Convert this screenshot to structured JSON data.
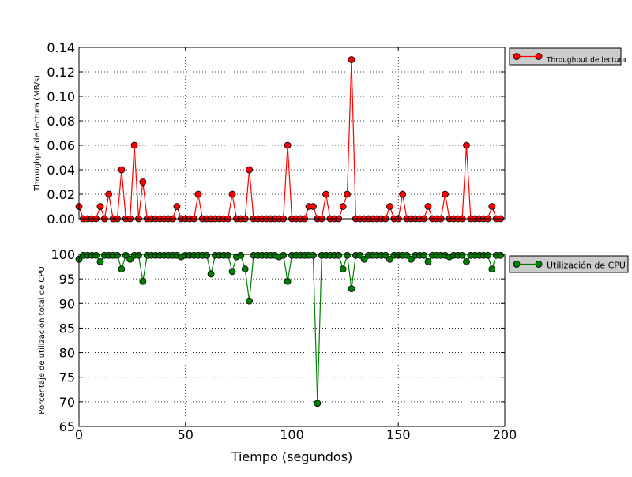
{
  "chart_data": [
    {
      "type": "line",
      "xlabel": "",
      "ylabel": "Throughput de lectura (MB/s)",
      "xlim": [
        0,
        200
      ],
      "ylim": [
        0,
        0.14
      ],
      "grid": true,
      "legend_position": "outside-right",
      "x_ticks": [
        0,
        50,
        100,
        150,
        200
      ],
      "y_ticks": [
        0.0,
        0.02,
        0.04,
        0.06,
        0.08,
        0.1,
        0.12,
        0.14
      ],
      "y_tick_labels": [
        "0.00",
        "0.02",
        "0.04",
        "0.06",
        "0.08",
        "0.10",
        "0.12",
        "0.14"
      ],
      "series": [
        {
          "name": "Throughput de lectura",
          "color": "#ff0000",
          "x": [
            0,
            2,
            4,
            6,
            8,
            10,
            12,
            14,
            16,
            18,
            20,
            22,
            24,
            26,
            28,
            30,
            32,
            34,
            36,
            38,
            40,
            42,
            44,
            46,
            48,
            50,
            52,
            54,
            56,
            58,
            60,
            62,
            64,
            66,
            68,
            70,
            72,
            74,
            76,
            78,
            80,
            82,
            84,
            86,
            88,
            90,
            92,
            94,
            96,
            98,
            100,
            102,
            104,
            106,
            108,
            110,
            112,
            114,
            116,
            118,
            120,
            122,
            124,
            126,
            128,
            130,
            132,
            134,
            136,
            138,
            140,
            142,
            144,
            146,
            148,
            150,
            152,
            154,
            156,
            158,
            160,
            162,
            164,
            166,
            168,
            170,
            172,
            174,
            176,
            178,
            180,
            182,
            184,
            186,
            188,
            190,
            192,
            194,
            196,
            198
          ],
          "y": [
            0.01,
            0,
            0,
            0,
            0,
            0.01,
            0,
            0.02,
            0,
            0,
            0.04,
            0,
            0,
            0.06,
            0,
            0.03,
            0,
            0,
            0,
            0,
            0,
            0,
            0,
            0.01,
            0,
            0,
            0,
            0,
            0.02,
            0,
            0,
            0,
            0,
            0,
            0,
            0,
            0.02,
            0,
            0,
            0,
            0.04,
            0,
            0,
            0,
            0,
            0,
            0,
            0,
            0,
            0.06,
            0,
            0,
            0,
            0,
            0.01,
            0.01,
            0,
            0,
            0.02,
            0,
            0,
            0,
            0.01,
            0.02,
            0.13,
            0,
            0,
            0,
            0,
            0,
            0,
            0,
            0,
            0.01,
            0,
            0,
            0.02,
            0,
            0,
            0,
            0,
            0,
            0.01,
            0,
            0,
            0,
            0.02,
            0,
            0,
            0,
            0,
            0.06,
            0,
            0,
            0,
            0,
            0,
            0.01,
            0,
            0
          ]
        }
      ]
    },
    {
      "type": "line",
      "xlabel": "Tiempo (segundos)",
      "ylabel": "Porcentaje de utilización total de CPU",
      "xlim": [
        0,
        200
      ],
      "ylim": [
        65,
        100
      ],
      "grid": true,
      "legend_position": "outside-right",
      "x_ticks": [
        0,
        50,
        100,
        150,
        200
      ],
      "x_tick_labels": [
        "0",
        "50",
        "100",
        "150",
        "200"
      ],
      "y_ticks": [
        65,
        70,
        75,
        80,
        85,
        90,
        95,
        100
      ],
      "y_tick_labels": [
        "65",
        "70",
        "75",
        "80",
        "85",
        "90",
        "95",
        "100"
      ],
      "series": [
        {
          "name": "Utilización de CPU",
          "color": "#008000",
          "x": [
            0,
            2,
            4,
            6,
            8,
            10,
            12,
            14,
            16,
            18,
            20,
            22,
            24,
            26,
            28,
            30,
            32,
            34,
            36,
            38,
            40,
            42,
            44,
            46,
            48,
            50,
            52,
            54,
            56,
            58,
            60,
            62,
            64,
            66,
            68,
            70,
            72,
            74,
            76,
            78,
            80,
            82,
            84,
            86,
            88,
            90,
            92,
            94,
            96,
            98,
            100,
            102,
            104,
            106,
            108,
            110,
            112,
            114,
            116,
            118,
            120,
            122,
            124,
            126,
            128,
            130,
            132,
            134,
            136,
            138,
            140,
            142,
            144,
            146,
            148,
            150,
            152,
            154,
            156,
            158,
            160,
            162,
            164,
            166,
            168,
            170,
            172,
            174,
            176,
            178,
            180,
            182,
            184,
            186,
            188,
            190,
            192,
            194,
            196,
            198
          ],
          "y": [
            99,
            99.8,
            99.8,
            99.8,
            99.8,
            98.5,
            99.8,
            99.8,
            99.8,
            99.8,
            97,
            99.8,
            99,
            99.8,
            99.8,
            94.5,
            99.8,
            99.8,
            99.8,
            99.8,
            99.8,
            99.8,
            99.8,
            99.8,
            99.5,
            99.8,
            99.8,
            99.8,
            99.8,
            99.8,
            99.8,
            96,
            99.8,
            99.8,
            99.8,
            99.8,
            96.5,
            99.5,
            99.8,
            97,
            90.5,
            99.8,
            99.8,
            99.8,
            99.8,
            99.8,
            99.8,
            99.5,
            99.8,
            94.5,
            99.8,
            99.8,
            99.8,
            99.8,
            99.8,
            99.8,
            69.7,
            99.8,
            99.8,
            99.8,
            99.8,
            99.8,
            97,
            99.8,
            93,
            99.8,
            99.8,
            99,
            99.8,
            99.8,
            99.8,
            99.8,
            99.8,
            99,
            99.8,
            99.8,
            99.8,
            99.8,
            99,
            99.8,
            99.8,
            99.8,
            98.5,
            99.8,
            99.8,
            99.8,
            99.8,
            99.5,
            99.8,
            99.8,
            99.8,
            98.5,
            99.8,
            99.8,
            99.8,
            99.8,
            99.8,
            97,
            99.8,
            99.8
          ]
        }
      ]
    }
  ]
}
